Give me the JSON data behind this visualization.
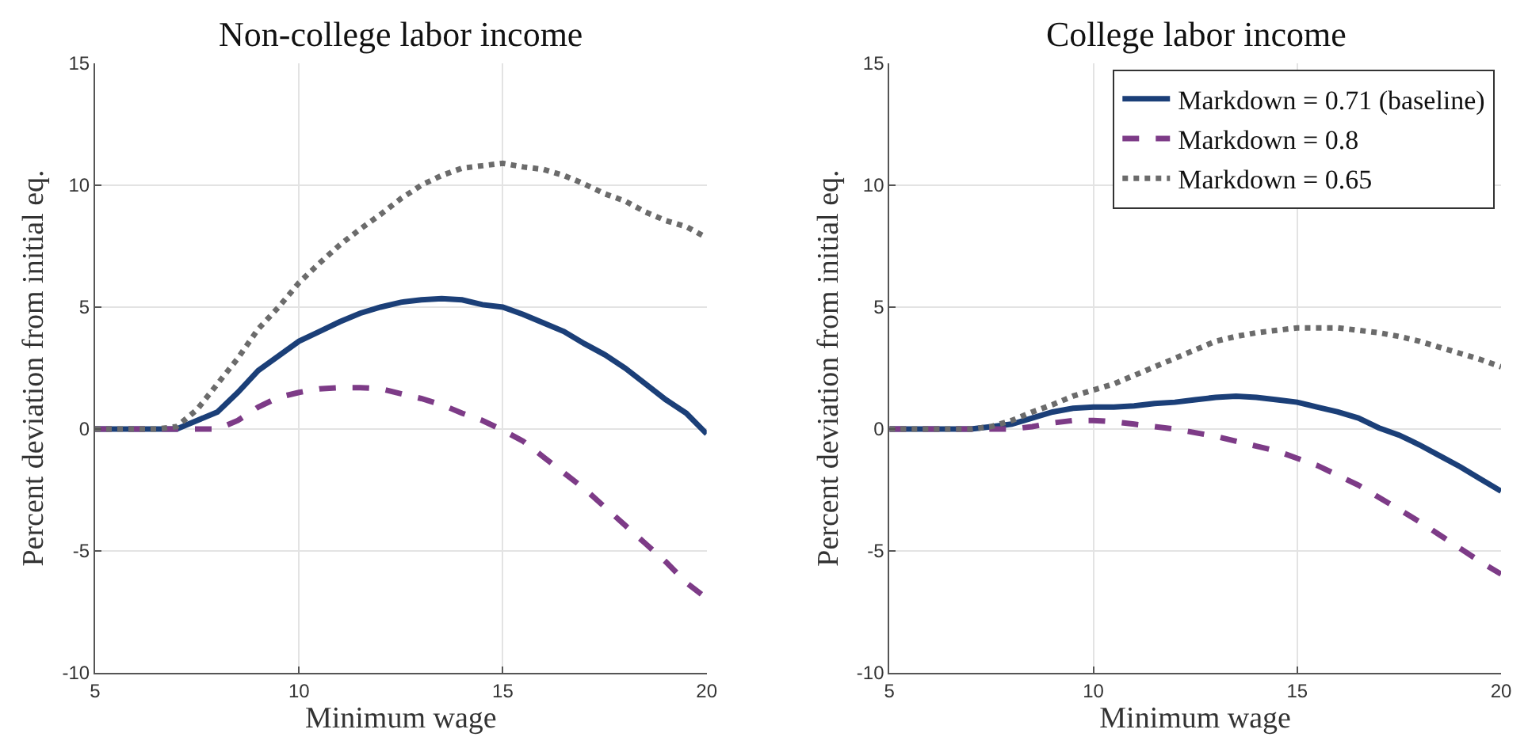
{
  "chart_data": [
    {
      "type": "line",
      "title": "Non-college labor income",
      "xlabel": "Minimum wage",
      "ylabel": "Percent deviation from initial eq.",
      "x": [
        5,
        5.5,
        6,
        6.5,
        7,
        7.5,
        8,
        8.5,
        9,
        9.5,
        10,
        10.5,
        11,
        11.5,
        12,
        12.5,
        13,
        13.5,
        14,
        14.5,
        15,
        15.5,
        16,
        16.5,
        17,
        17.5,
        18,
        18.5,
        19,
        19.5,
        20
      ],
      "xlim": [
        5,
        20
      ],
      "xticks": [
        5,
        10,
        15,
        20
      ],
      "ylim": [
        -10,
        15
      ],
      "yticks": [
        -10,
        -5,
        0,
        5,
        10,
        15
      ],
      "grid": true,
      "series": [
        {
          "color": "#1b3f78",
          "line_style": "solid",
          "values": [
            0,
            0,
            0,
            0,
            0,
            0.35,
            0.7,
            1.5,
            2.4,
            3.0,
            3.6,
            4.0,
            4.4,
            4.75,
            5.0,
            5.2,
            5.3,
            5.35,
            5.3,
            5.1,
            5.0,
            4.7,
            4.35,
            4.0,
            3.5,
            3.05,
            2.5,
            1.85,
            1.2,
            0.65,
            -0.2
          ]
        },
        {
          "color": "#7d3b87",
          "line_style": "dashed",
          "values": [
            0,
            0,
            0,
            0,
            0,
            0,
            0,
            0.35,
            0.9,
            1.3,
            1.5,
            1.65,
            1.7,
            1.7,
            1.65,
            1.45,
            1.25,
            1.0,
            0.65,
            0.35,
            -0.05,
            -0.5,
            -1.15,
            -1.8,
            -2.45,
            -3.2,
            -3.95,
            -4.7,
            -5.45,
            -6.3,
            -6.95
          ]
        },
        {
          "color": "#6b6b6b",
          "line_style": "dotted",
          "values": [
            0,
            0,
            0,
            0,
            0.1,
            0.8,
            1.85,
            2.9,
            4.1,
            5.0,
            6.0,
            6.8,
            7.55,
            8.2,
            8.8,
            9.45,
            10.0,
            10.4,
            10.7,
            10.8,
            10.9,
            10.75,
            10.65,
            10.4,
            10.05,
            9.65,
            9.35,
            8.9,
            8.55,
            8.3,
            7.85
          ]
        }
      ]
    },
    {
      "type": "line",
      "title": "College labor income",
      "xlabel": "Minimum wage",
      "ylabel": "Percent deviation from initial eq.",
      "x": [
        5,
        5.5,
        6,
        6.5,
        7,
        7.5,
        8,
        8.5,
        9,
        9.5,
        10,
        10.5,
        11,
        11.5,
        12,
        12.5,
        13,
        13.5,
        14,
        14.5,
        15,
        15.5,
        16,
        16.5,
        17,
        17.5,
        18,
        18.5,
        19,
        19.5,
        20
      ],
      "xlim": [
        5,
        20
      ],
      "xticks": [
        5,
        10,
        15,
        20
      ],
      "ylim": [
        -10,
        15
      ],
      "yticks": [
        -10,
        -5,
        0,
        5,
        10,
        15
      ],
      "grid": true,
      "legend": "top right",
      "series": [
        {
          "name": "Markdown = 0.71 (baseline)",
          "color": "#1b3f78",
          "line_style": "solid",
          "values": [
            0,
            0,
            0,
            0,
            0,
            0.1,
            0.2,
            0.45,
            0.7,
            0.85,
            0.9,
            0.9,
            0.95,
            1.05,
            1.1,
            1.2,
            1.3,
            1.35,
            1.3,
            1.2,
            1.1,
            0.9,
            0.7,
            0.45,
            0.05,
            -0.25,
            -0.65,
            -1.1,
            -1.55,
            -2.05,
            -2.55
          ]
        },
        {
          "name": "Markdown = 0.8",
          "color": "#7d3b87",
          "line_style": "dashed",
          "values": [
            0,
            0,
            0,
            0,
            0,
            0,
            0,
            0.1,
            0.25,
            0.35,
            0.35,
            0.3,
            0.2,
            0.1,
            0,
            -0.15,
            -0.3,
            -0.5,
            -0.7,
            -0.9,
            -1.2,
            -1.5,
            -1.9,
            -2.3,
            -2.8,
            -3.3,
            -3.8,
            -4.35,
            -4.9,
            -5.45,
            -5.95
          ]
        },
        {
          "name": "Markdown = 0.65",
          "color": "#6b6b6b",
          "line_style": "dotted",
          "values": [
            0,
            0,
            0,
            0,
            0,
            0.1,
            0.35,
            0.7,
            1.0,
            1.35,
            1.6,
            1.85,
            2.2,
            2.55,
            2.9,
            3.25,
            3.6,
            3.8,
            3.95,
            4.05,
            4.15,
            4.15,
            4.15,
            4.05,
            3.95,
            3.8,
            3.6,
            3.35,
            3.1,
            2.85,
            2.55
          ]
        }
      ]
    }
  ]
}
